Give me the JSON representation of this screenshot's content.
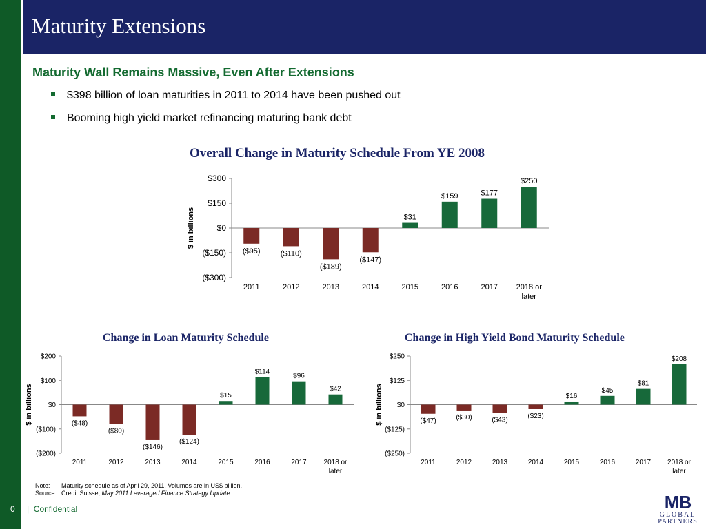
{
  "header": {
    "title": "Maturity Extensions"
  },
  "subtitle": "Maturity Wall Remains Massive, Even After Extensions",
  "bullets": [
    "$398 billion of loan maturities in 2011 to 2014 have been pushed out",
    "Booming high yield market refinancing maturing bank debt"
  ],
  "colors": {
    "negative": "#7b2a25",
    "positive": "#17693a",
    "title": "#1a2466",
    "brand": "#0f5a27"
  },
  "chart_data": [
    {
      "type": "bar",
      "title": "Overall Change in Maturity Schedule From YE 2008",
      "ylabel": "$ in billions",
      "categories": [
        "2011",
        "2012",
        "2013",
        "2014",
        "2015",
        "2016",
        "2017",
        "2018 or later"
      ],
      "values": [
        -95,
        -110,
        -189,
        -147,
        31,
        159,
        177,
        250
      ],
      "value_labels": [
        "($95)",
        "($110)",
        "($189)",
        "($147)",
        "$31",
        "$159",
        "$177",
        "$250"
      ],
      "ylim": [
        -300,
        300
      ],
      "yticks": [
        300,
        150,
        0,
        -150,
        -300
      ],
      "ytick_labels": [
        "$300",
        "$150",
        "$0",
        "($150)",
        "($300)"
      ],
      "grid": false
    },
    {
      "type": "bar",
      "title": "Change in Loan Maturity Schedule",
      "ylabel": "$ in billions",
      "categories": [
        "2011",
        "2012",
        "2013",
        "2014",
        "2015",
        "2016",
        "2017",
        "2018 or later"
      ],
      "values": [
        -48,
        -80,
        -146,
        -124,
        15,
        114,
        96,
        42
      ],
      "value_labels": [
        "($48)",
        "($80)",
        "($146)",
        "($124)",
        "$15",
        "$114",
        "$96",
        "$42"
      ],
      "ylim": [
        -200,
        200
      ],
      "yticks": [
        200,
        100,
        0,
        -100,
        -200
      ],
      "ytick_labels": [
        "$200",
        "$100",
        "$0",
        "($100)",
        "($200)"
      ],
      "grid": false
    },
    {
      "type": "bar",
      "title": "Change in High Yield Bond Maturity Schedule",
      "ylabel": "$ in billions",
      "categories": [
        "2011",
        "2012",
        "2013",
        "2014",
        "2015",
        "2016",
        "2017",
        "2018 or later"
      ],
      "values": [
        -47,
        -30,
        -43,
        -23,
        16,
        45,
        81,
        208
      ],
      "value_labels": [
        "($47)",
        "($30)",
        "($43)",
        "($23)",
        "$16",
        "$45",
        "$81",
        "$208"
      ],
      "ylim": [
        -250,
        250
      ],
      "yticks": [
        250,
        125,
        0,
        -125,
        -250
      ],
      "ytick_labels": [
        "$250",
        "$125",
        "$0",
        "($125)",
        "($250)"
      ],
      "grid": false
    }
  ],
  "note": {
    "note_label": "Note:",
    "note_text": "Maturity schedule as of April 29, 2011.  Volumes are in US$ billion.",
    "source_label": "Source:",
    "source_prefix": "Credit Suisse, ",
    "source_italic": "May 2011 Leveraged Finance Strategy Update",
    "source_suffix": "."
  },
  "footer": {
    "page_number": "0",
    "separator": "|",
    "confidential": "Confidential"
  },
  "logo": {
    "mark": "MB",
    "line1": "GLOBAL",
    "line2": "PARTNERS"
  }
}
